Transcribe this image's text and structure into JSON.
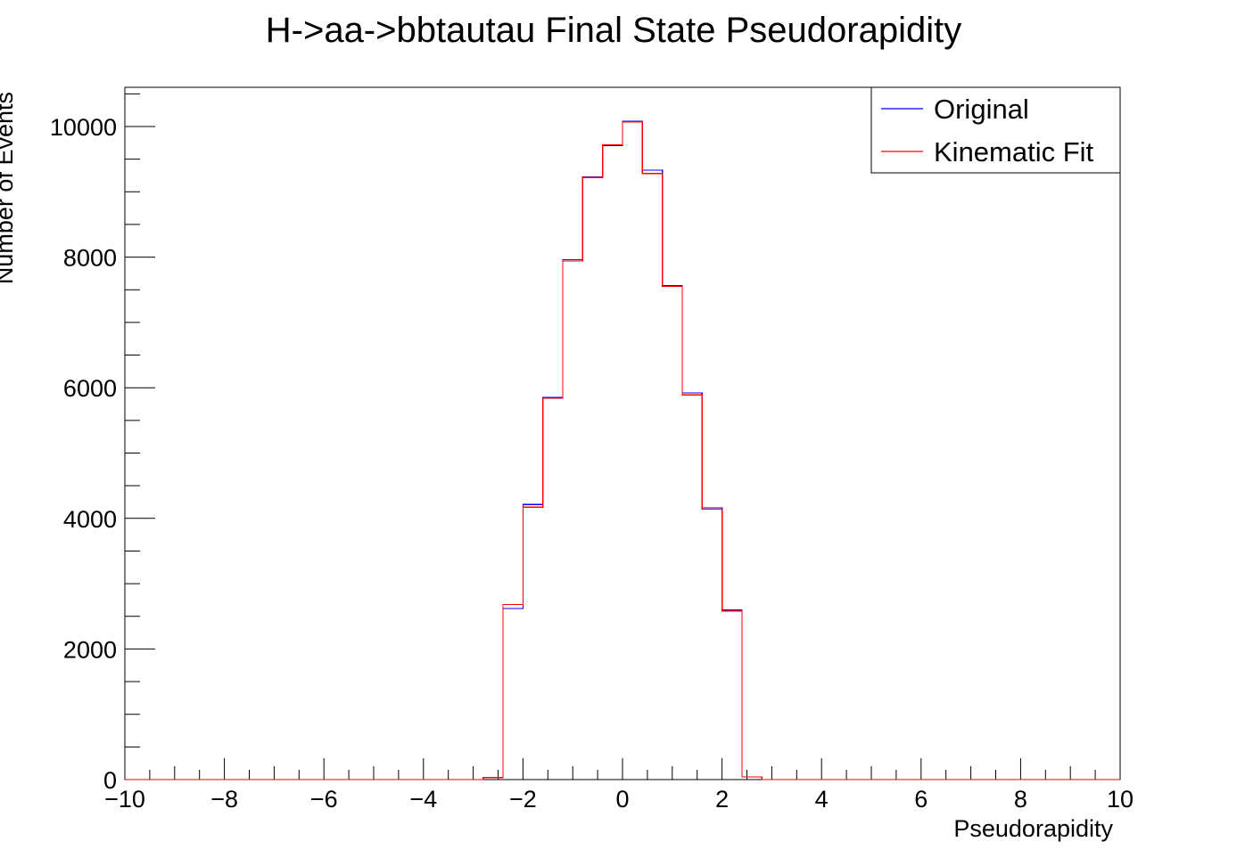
{
  "chart_data": {
    "type": "histogram",
    "title": "H->aa->bbtautau Final State Pseudorapidity",
    "xlabel": "Pseudorapidity",
    "ylabel": "Number of Events",
    "xlim": [
      -10,
      10
    ],
    "ylim": [
      0,
      10600
    ],
    "x_major_ticks": [
      -10,
      -8,
      -6,
      -4,
      -2,
      0,
      2,
      4,
      6,
      8,
      10
    ],
    "x_tick_labels": [
      "−10",
      "−8",
      "−6",
      "−4",
      "−2",
      "0",
      "2",
      "4",
      "6",
      "8",
      "10"
    ],
    "y_major_ticks": [
      0,
      2000,
      4000,
      6000,
      8000,
      10000
    ],
    "y_tick_labels": [
      "0",
      "2000",
      "4000",
      "6000",
      "8000",
      "10000"
    ],
    "grid": false,
    "legend_position": "top-right",
    "bin_edges": [
      -10,
      -9.6,
      -9.2,
      -8.8,
      -8.4,
      -8,
      -7.6,
      -7.2,
      -6.8,
      -6.4,
      -6,
      -5.6,
      -5.2,
      -4.8,
      -4.4,
      -4,
      -3.6,
      -3.2,
      -2.8,
      -2.4,
      -2,
      -1.6,
      -1.2,
      -0.8,
      -0.4,
      0,
      0.4,
      0.8,
      1.2,
      1.6,
      2,
      2.4,
      2.8,
      3.2,
      3.6,
      4,
      4.4,
      4.8,
      5.2,
      5.6,
      6,
      6.4,
      6.8,
      7.2,
      7.6,
      8,
      8.4,
      8.8,
      9.2,
      9.6,
      10
    ],
    "series": [
      {
        "name": "Original",
        "color": "#0000ff",
        "values": [
          0,
          0,
          0,
          0,
          0,
          0,
          0,
          0,
          0,
          0,
          0,
          0,
          0,
          0,
          0,
          0,
          0,
          0,
          30,
          2620,
          4210,
          5850,
          7960,
          9230,
          9710,
          10080,
          9330,
          7560,
          5920,
          4160,
          2600,
          40,
          0,
          0,
          0,
          0,
          0,
          0,
          0,
          0,
          0,
          0,
          0,
          0,
          0,
          0,
          0,
          0,
          0,
          0
        ]
      },
      {
        "name": "Kinematic Fit",
        "color": "#ff0000",
        "values": [
          0,
          0,
          0,
          0,
          0,
          0,
          0,
          0,
          0,
          0,
          0,
          0,
          0,
          0,
          0,
          0,
          0,
          0,
          30,
          2680,
          4170,
          5840,
          7940,
          9220,
          9720,
          10070,
          9280,
          7550,
          5890,
          4140,
          2580,
          40,
          0,
          0,
          0,
          0,
          0,
          0,
          0,
          0,
          0,
          0,
          0,
          0,
          0,
          0,
          0,
          0,
          0,
          0
        ]
      }
    ]
  }
}
